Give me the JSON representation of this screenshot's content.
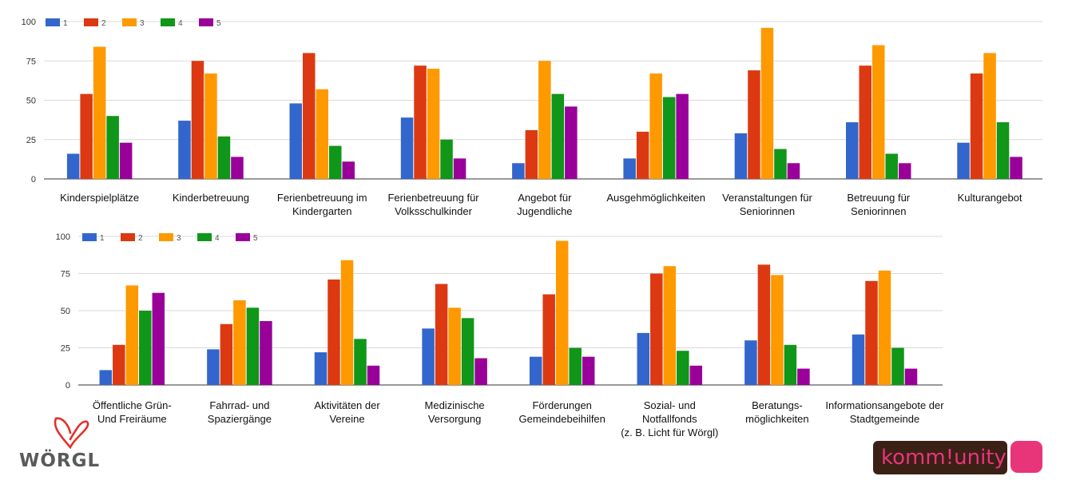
{
  "colors": {
    "1": "#3366cc",
    "2": "#dc3912",
    "3": "#ff9900",
    "4": "#109618",
    "5": "#990099"
  },
  "logos": {
    "worgl": "WÖRGL",
    "kommunity": "komm!unity"
  },
  "chart_data": [
    {
      "type": "bar",
      "ylim": [
        0,
        100
      ],
      "yticks": [
        0,
        25,
        50,
        75,
        100
      ],
      "grid": true,
      "legend": "top-left",
      "categories": [
        [
          "Kinderspielplätze"
        ],
        [
          "Kinderbetreuung"
        ],
        [
          "Ferienbetreuung im",
          "Kindergarten"
        ],
        [
          "Ferienbetreuung für",
          "Volksschulkinder"
        ],
        [
          "Angebot für",
          "Jugendliche"
        ],
        [
          "Ausgehmöglichkeiten"
        ],
        [
          "Veranstaltungen für",
          "Seniorinnen"
        ],
        [
          "Betreuung für",
          "Seniorinnen"
        ],
        [
          "Kulturangebot"
        ]
      ],
      "series": [
        {
          "name": "1",
          "values": [
            16,
            37,
            48,
            39,
            10,
            13,
            29,
            36,
            23
          ]
        },
        {
          "name": "2",
          "values": [
            54,
            75,
            80,
            72,
            31,
            30,
            69,
            72,
            67
          ]
        },
        {
          "name": "3",
          "values": [
            84,
            67,
            57,
            70,
            75,
            67,
            96,
            85,
            80
          ]
        },
        {
          "name": "4",
          "values": [
            40,
            27,
            21,
            25,
            54,
            52,
            19,
            16,
            36
          ]
        },
        {
          "name": "5",
          "values": [
            23,
            14,
            11,
            13,
            46,
            54,
            10,
            10,
            14
          ]
        }
      ]
    },
    {
      "type": "bar",
      "ylim": [
        0,
        100
      ],
      "yticks": [
        0,
        25,
        50,
        75,
        100
      ],
      "grid": true,
      "legend": "top-left",
      "categories": [
        [
          "Öffentliche Grün-",
          "Und Freiräume"
        ],
        [
          "Fahrrad- und",
          "Spaziergänge"
        ],
        [
          "Aktivitäten der",
          "Vereine"
        ],
        [
          "Medizinische",
          "Versorgung"
        ],
        [
          "Förderungen",
          "Gemeindebeihilfen"
        ],
        [
          "Sozial- und",
          "Notfallfonds",
          "(z. B. Licht für Wörgl)"
        ],
        [
          "Beratungs-",
          "möglichkeiten"
        ],
        [
          "Informationsangebote der",
          "Stadtgemeinde"
        ]
      ],
      "series": [
        {
          "name": "1",
          "values": [
            10,
            24,
            22,
            38,
            19,
            35,
            30,
            34
          ]
        },
        {
          "name": "2",
          "values": [
            27,
            41,
            71,
            68,
            61,
            75,
            81,
            70
          ]
        },
        {
          "name": "3",
          "values": [
            67,
            57,
            84,
            52,
            97,
            80,
            74,
            77
          ]
        },
        {
          "name": "4",
          "values": [
            50,
            52,
            31,
            45,
            25,
            23,
            27,
            25
          ]
        },
        {
          "name": "5",
          "values": [
            62,
            43,
            13,
            18,
            19,
            13,
            11,
            11
          ]
        }
      ]
    }
  ]
}
